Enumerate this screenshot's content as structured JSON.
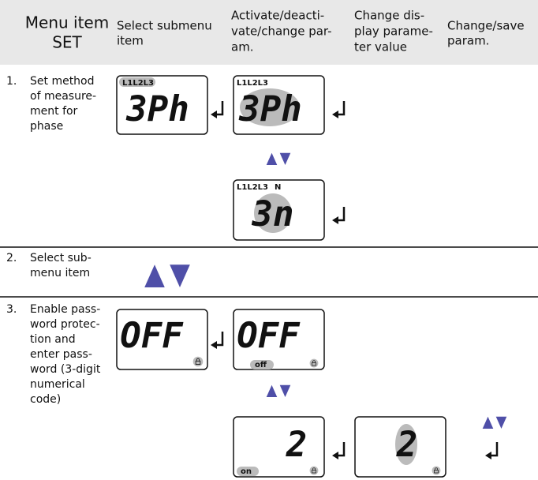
{
  "header": {
    "columns": [
      [
        "Menu item",
        "SET"
      ],
      [
        "Select submenu",
        "item"
      ],
      [
        "Activate/deacti-",
        "vate/change par-",
        "am."
      ],
      [
        "Change dis-",
        "play parame-",
        "ter value"
      ],
      [
        "Change/save",
        "param."
      ]
    ]
  },
  "rows": [
    {
      "number": "1.",
      "text": [
        "Set method",
        "of measure-",
        "ment for",
        "phase"
      ],
      "displays": [
        {
          "indicators": "L1L2L3",
          "value": "3Ph"
        },
        {
          "indicators": "L1L2L3",
          "value": "3Ph"
        },
        {
          "indicators": "L1L2L3",
          "extra": "N",
          "value": "3n"
        }
      ]
    },
    {
      "number": "2.",
      "text": [
        "Select sub-",
        "menu item"
      ]
    },
    {
      "number": "3.",
      "text": [
        "Enable pass-",
        "word protec-",
        "tion and",
        "enter pass-",
        "word (3-digit",
        "numerical",
        "code)"
      ],
      "displays": [
        {
          "value": "OFF"
        },
        {
          "value": "OFF",
          "tag": "off"
        },
        {
          "value": "2",
          "tag": "on"
        },
        {
          "value": "2"
        }
      ]
    }
  ]
}
